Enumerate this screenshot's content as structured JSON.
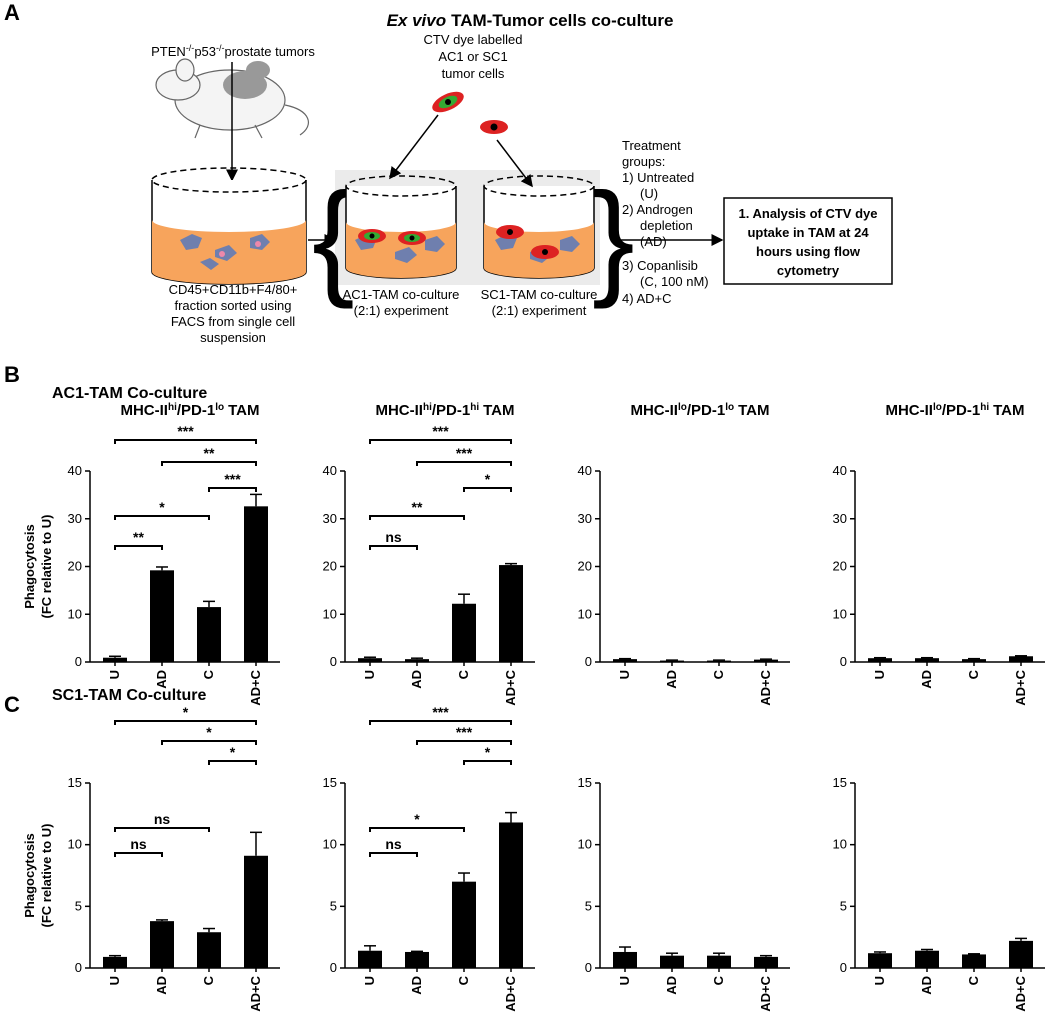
{
  "panel_a": {
    "label": "A",
    "title": {
      "italic": "Ex vivo",
      "rest": "TAM-Tumor cells co-culture"
    },
    "tumor_label": {
      "gene1": "PTEN",
      "sup1": "-/-",
      "gene2": "p53",
      "sup2": "-/-",
      "rest": "prostate tumors"
    },
    "sorted_fraction": [
      "CD45+CD11b+F4/80+",
      "fraction sorted using",
      "FACS from single cell",
      "suspension"
    ],
    "dye_label": [
      "CTV dye labelled",
      "AC1 or SC1",
      "tumor cells"
    ],
    "ac1_label": [
      "AC1-TAM co-culture",
      "(2:1) experiment"
    ],
    "sc1_label": [
      "SC1-TAM co-culture",
      "(2:1) experiment"
    ],
    "treatment": [
      "Treatment",
      "groups:",
      "1)  Untreated",
      "(U)",
      "2)  Androgen",
      "depletion",
      "(AD)",
      "3)  Copanlisib",
      "(C, 100 nM)",
      "4)  AD+C"
    ],
    "analysis": [
      "1. Analysis of CTV dye",
      "uptake in TAM at 24",
      "hours using flow",
      "cytometry"
    ]
  },
  "panel_b": {
    "label": "B",
    "title": "AC1-TAM Co-culture"
  },
  "panel_c": {
    "label": "C",
    "title": "SC1-TAM Co-culture"
  },
  "chart_data": [
    {
      "type": "bar",
      "title": [
        {
          "text": "MHC-II"
        },
        {
          "text": "hi",
          "sup": true
        },
        {
          "text": "/PD-1"
        },
        {
          "text": "lo",
          "sup": true
        },
        {
          "text": "TAM"
        }
      ],
      "ylabel": [
        "Phagocytosis",
        "(FC relative to U)"
      ],
      "categories": [
        "U",
        "AD",
        "C",
        "AD+C"
      ],
      "values": [
        0.9,
        19.2,
        11.5,
        32.6
      ],
      "errors": [
        0.3,
        0.7,
        1.2,
        2.5
      ],
      "color": "#000000",
      "ylim": [
        0,
        40
      ],
      "yticks": [
        0,
        10,
        20,
        30,
        40
      ],
      "comparisons": [
        {
          "between": [
            "U",
            "AD"
          ],
          "label": "**"
        },
        {
          "between": [
            "U",
            "C"
          ],
          "label": "*"
        },
        {
          "between": [
            "C",
            "AD+C"
          ],
          "label": "***"
        },
        {
          "between": [
            "AD",
            "AD+C"
          ],
          "label": "**"
        },
        {
          "between": [
            "U",
            "AD+C"
          ],
          "label": "***"
        }
      ]
    },
    {
      "type": "bar",
      "title": [
        {
          "text": "MHC-II"
        },
        {
          "text": "hi",
          "sup": true
        },
        {
          "text": "/PD-1"
        },
        {
          "text": "hi",
          "sup": true
        },
        {
          "text": "TAM"
        }
      ],
      "categories": [
        "U",
        "AD",
        "C",
        "AD+C"
      ],
      "values": [
        0.8,
        0.6,
        12.2,
        20.3
      ],
      "errors": [
        0.2,
        0.2,
        2.0,
        0.3
      ],
      "color": "#000000",
      "ylim": [
        0,
        40
      ],
      "yticks": [
        0,
        10,
        20,
        30,
        40
      ],
      "comparisons": [
        {
          "between": [
            "U",
            "AD"
          ],
          "label": "ns"
        },
        {
          "between": [
            "U",
            "C"
          ],
          "label": "**"
        },
        {
          "between": [
            "C",
            "AD+C"
          ],
          "label": "*"
        },
        {
          "between": [
            "AD",
            "AD+C"
          ],
          "label": "***"
        },
        {
          "between": [
            "U",
            "AD+C"
          ],
          "label": "***"
        }
      ]
    },
    {
      "type": "bar",
      "title": [
        {
          "text": "MHC-II"
        },
        {
          "text": "lo",
          "sup": true
        },
        {
          "text": "/PD-1"
        },
        {
          "text": "lo",
          "sup": true
        },
        {
          "text": "TAM"
        }
      ],
      "categories": [
        "U",
        "AD",
        "C",
        "AD+C"
      ],
      "values": [
        0.6,
        0.3,
        0.3,
        0.5
      ],
      "errors": [
        0.1,
        0.1,
        0.1,
        0.1
      ],
      "color": "#000000",
      "ylim": [
        0,
        40
      ],
      "yticks": [
        0,
        10,
        20,
        30,
        40
      ]
    },
    {
      "type": "bar",
      "title": [
        {
          "text": "MHC-II"
        },
        {
          "text": "lo",
          "sup": true
        },
        {
          "text": "/PD-1"
        },
        {
          "text": "hi",
          "sup": true
        },
        {
          "text": "TAM"
        }
      ],
      "categories": [
        "U",
        "AD",
        "C",
        "AD+C"
      ],
      "values": [
        0.8,
        0.8,
        0.6,
        1.2
      ],
      "errors": [
        0.1,
        0.1,
        0.1,
        0.1
      ],
      "color": "#000000",
      "ylim": [
        0,
        40
      ],
      "yticks": [
        0,
        10,
        20,
        30,
        40
      ]
    },
    {
      "type": "bar",
      "ylabel": [
        "Phagocytosis",
        "(FC relative to U)"
      ],
      "categories": [
        "U",
        "AD",
        "C",
        "AD+C"
      ],
      "values": [
        0.9,
        3.8,
        2.9,
        9.1
      ],
      "errors": [
        0.1,
        0.1,
        0.3,
        1.9
      ],
      "color": "#000000",
      "ylim": [
        0,
        15
      ],
      "yticks": [
        0,
        5,
        10,
        15
      ],
      "comparisons": [
        {
          "between": [
            "U",
            "AD"
          ],
          "label": "ns"
        },
        {
          "between": [
            "U",
            "C"
          ],
          "label": "ns"
        },
        {
          "between": [
            "C",
            "AD+C"
          ],
          "label": "*"
        },
        {
          "between": [
            "AD",
            "AD+C"
          ],
          "label": "*"
        },
        {
          "between": [
            "U",
            "AD+C"
          ],
          "label": "*"
        }
      ]
    },
    {
      "type": "bar",
      "categories": [
        "U",
        "AD",
        "C",
        "AD+C"
      ],
      "values": [
        1.4,
        1.3,
        7.0,
        11.8
      ],
      "errors": [
        0.4,
        0.05,
        0.7,
        0.8
      ],
      "color": "#000000",
      "ylim": [
        0,
        15
      ],
      "yticks": [
        0,
        5,
        10,
        15
      ],
      "comparisons": [
        {
          "between": [
            "U",
            "AD"
          ],
          "label": "ns"
        },
        {
          "between": [
            "U",
            "C"
          ],
          "label": "*"
        },
        {
          "between": [
            "C",
            "AD+C"
          ],
          "label": "*"
        },
        {
          "between": [
            "AD",
            "AD+C"
          ],
          "label": "***"
        },
        {
          "between": [
            "U",
            "AD+C"
          ],
          "label": "***"
        }
      ]
    },
    {
      "type": "bar",
      "categories": [
        "U",
        "AD",
        "C",
        "AD+C"
      ],
      "values": [
        1.3,
        1.0,
        1.0,
        0.9
      ],
      "errors": [
        0.4,
        0.2,
        0.2,
        0.1
      ],
      "color": "#000000",
      "ylim": [
        0,
        15
      ],
      "yticks": [
        0,
        5,
        10,
        15
      ]
    },
    {
      "type": "bar",
      "categories": [
        "U",
        "AD",
        "C",
        "AD+C"
      ],
      "values": [
        1.2,
        1.4,
        1.1,
        2.2
      ],
      "errors": [
        0.1,
        0.1,
        0.05,
        0.2
      ],
      "color": "#000000",
      "ylim": [
        0,
        15
      ],
      "yticks": [
        0,
        5,
        10,
        15
      ]
    }
  ]
}
